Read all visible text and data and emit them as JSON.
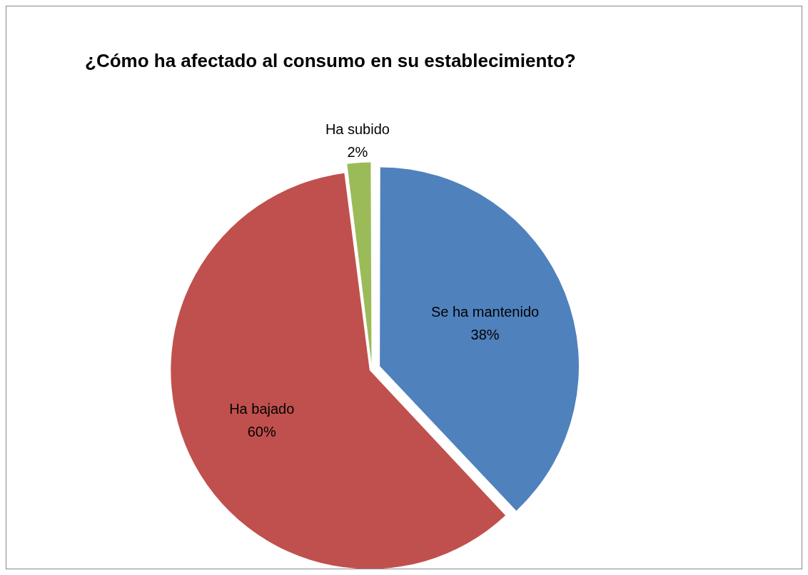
{
  "chart_data": {
    "type": "pie",
    "title": "¿Cómo ha afectado al consumo en su establecimiento?",
    "categories": [
      "Se ha mantenido",
      "Ha bajado",
      "Ha subido"
    ],
    "values": [
      38,
      60,
      2
    ],
    "colors": [
      "#4f81bd",
      "#c0504d",
      "#9bbb59"
    ],
    "value_labels": [
      "38%",
      "60%",
      "2%"
    ],
    "legend": false
  }
}
